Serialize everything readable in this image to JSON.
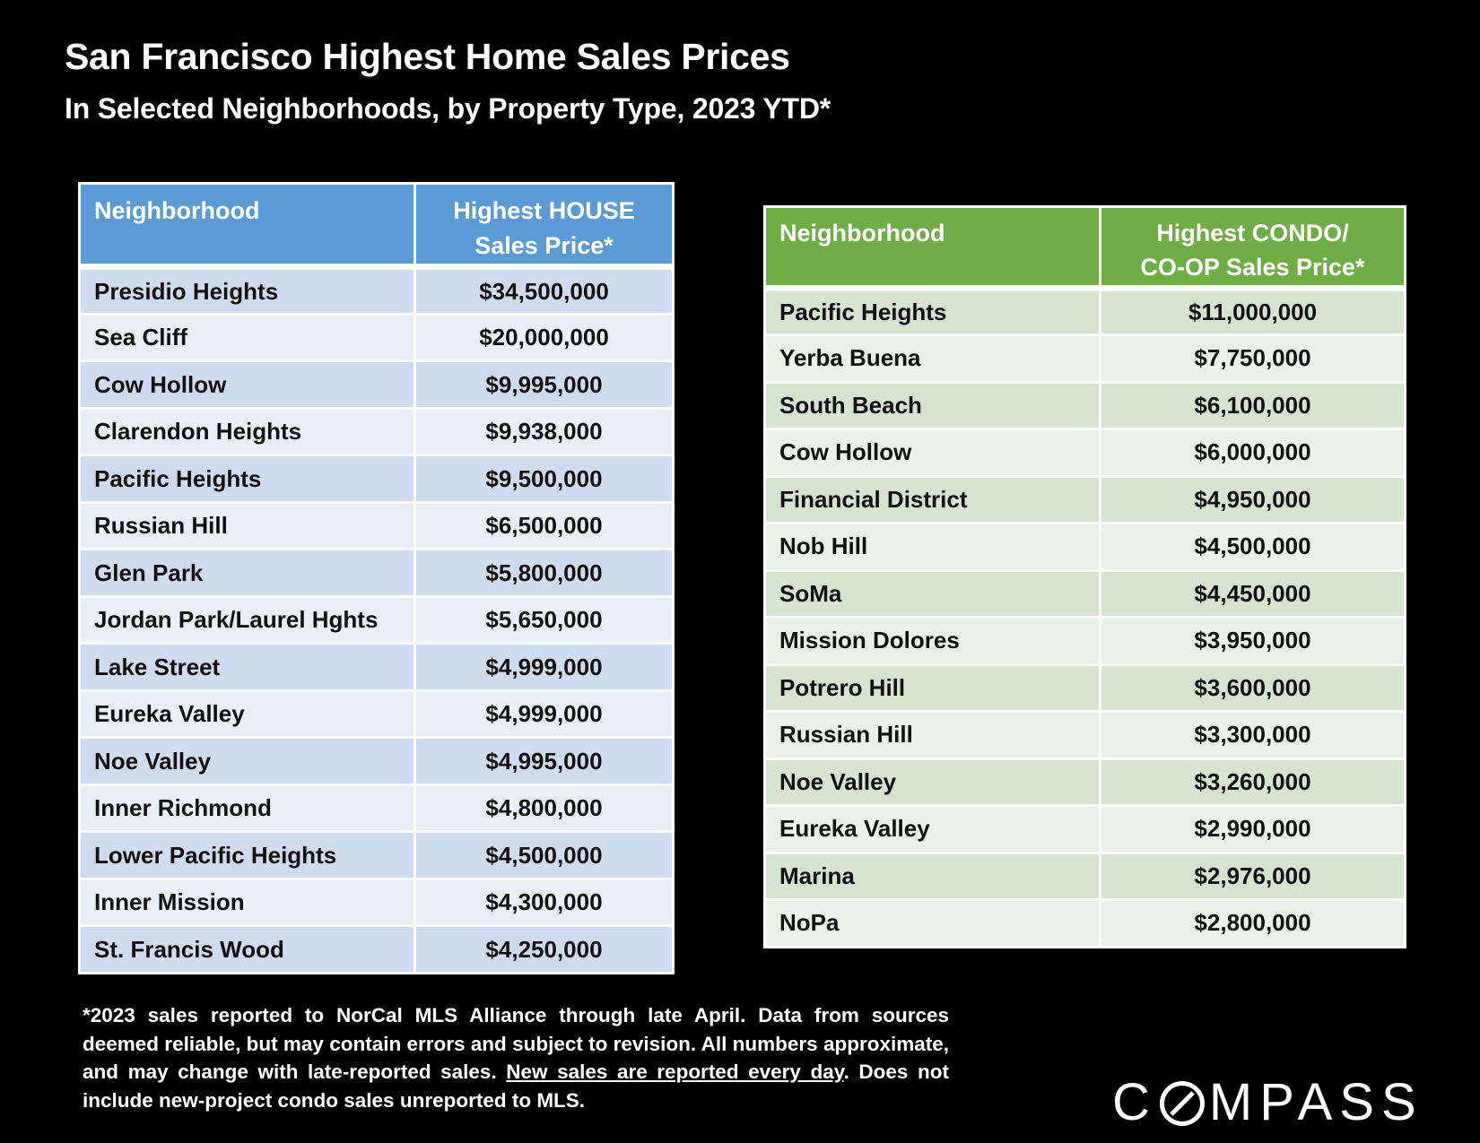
{
  "header": {
    "title": "San Francisco Highest Home Sales Prices",
    "subtitle": "In Selected Neighborhoods, by Property Type, 2023 YTD*"
  },
  "house_table": {
    "col_neighborhood": "Neighborhood",
    "col_price_line1": "Highest HOUSE",
    "col_price_line2": "Sales Price*",
    "rows": [
      {
        "name": "Presidio Heights",
        "price": "$34,500,000"
      },
      {
        "name": "Sea Cliff",
        "price": "$20,000,000"
      },
      {
        "name": "Cow Hollow",
        "price": "$9,995,000"
      },
      {
        "name": "Clarendon Heights",
        "price": "$9,938,000"
      },
      {
        "name": "Pacific Heights",
        "price": "$9,500,000"
      },
      {
        "name": "Russian Hill",
        "price": "$6,500,000"
      },
      {
        "name": "Glen Park",
        "price": "$5,800,000"
      },
      {
        "name": "Jordan Park/Laurel Hghts",
        "price": "$5,650,000"
      },
      {
        "name": "Lake Street",
        "price": "$4,999,000"
      },
      {
        "name": "Eureka Valley",
        "price": "$4,999,000"
      },
      {
        "name": "Noe Valley",
        "price": "$4,995,000"
      },
      {
        "name": "Inner Richmond",
        "price": "$4,800,000"
      },
      {
        "name": "Lower Pacific Heights",
        "price": "$4,500,000"
      },
      {
        "name": "Inner Mission",
        "price": "$4,300,000"
      },
      {
        "name": "St. Francis Wood",
        "price": "$4,250,000"
      }
    ]
  },
  "condo_table": {
    "col_neighborhood": "Neighborhood",
    "col_price_line1": "Highest CONDO/",
    "col_price_line2": "CO-OP Sales Price*",
    "rows": [
      {
        "name": "Pacific Heights",
        "price": "$11,000,000"
      },
      {
        "name": "Yerba Buena",
        "price": "$7,750,000"
      },
      {
        "name": "South Beach",
        "price": "$6,100,000"
      },
      {
        "name": "Cow Hollow",
        "price": "$6,000,000"
      },
      {
        "name": "Financial District",
        "price": "$4,950,000"
      },
      {
        "name": "Nob Hill",
        "price": "$4,500,000"
      },
      {
        "name": "SoMa",
        "price": "$4,450,000"
      },
      {
        "name": "Mission Dolores",
        "price": "$3,950,000"
      },
      {
        "name": "Potrero Hill",
        "price": "$3,600,000"
      },
      {
        "name": "Russian Hill",
        "price": "$3,300,000"
      },
      {
        "name": "Noe Valley",
        "price": "$3,260,000"
      },
      {
        "name": "Eureka Valley",
        "price": "$2,990,000"
      },
      {
        "name": "Marina",
        "price": "$2,976,000"
      },
      {
        "name": "NoPa",
        "price": "$2,800,000"
      }
    ]
  },
  "footnote": {
    "part1": "*2023 sales reported to NorCal MLS Alliance through late April. Data from sources deemed reliable, but may contain errors and subject to revision. All numbers approximate, and may change with late-reported sales. ",
    "link": "New sales are reported every day",
    "part2": ". Does not include new-project condo sales unreported to MLS."
  },
  "logo": {
    "text": "COMPASS",
    "prefix": "C",
    "suffix": "MPASS"
  },
  "colors": {
    "background": "#000000",
    "house_header": "#5b9bd5",
    "house_row_dark": "#cfdbee",
    "house_row_light": "#e9eef7",
    "condo_header": "#70ad47",
    "condo_row_dark": "#d5e3cf",
    "condo_row_light": "#ebf1e8"
  }
}
